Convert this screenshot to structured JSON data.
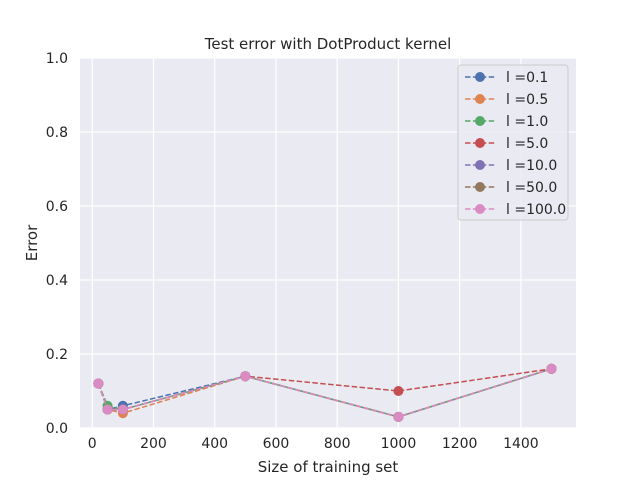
{
  "chart_data": {
    "type": "line",
    "title": "Test error with DotProduct kernel",
    "xlabel": "Size of training set",
    "ylabel": "Error",
    "xlim": [
      -40,
      1580
    ],
    "ylim": [
      0.0,
      1.0
    ],
    "xticks": [
      0,
      200,
      400,
      600,
      800,
      1000,
      1200,
      1400
    ],
    "yticks": [
      0.0,
      0.2,
      0.4,
      0.6,
      0.8,
      1.0
    ],
    "xtick_labels": [
      "0",
      "200",
      "400",
      "600",
      "800",
      "1000",
      "1200",
      "1400"
    ],
    "ytick_labels": [
      "0.0",
      "0.2",
      "0.4",
      "0.6",
      "0.8",
      "1.0"
    ],
    "grid": true,
    "legend_position": "top-right",
    "line_style": "dashed",
    "marker": "circle",
    "series": [
      {
        "name": "l =0.1",
        "color": "#4c72b0",
        "x": [
          20,
          50,
          100,
          500,
          1000,
          1500
        ],
        "y": [
          0.12,
          0.05,
          0.06,
          0.14,
          0.03,
          0.16
        ]
      },
      {
        "name": "l =0.5",
        "color": "#dd8452",
        "x": [
          20,
          50,
          100,
          500,
          1000,
          1500
        ],
        "y": [
          0.12,
          0.05,
          0.04,
          0.14,
          0.03,
          0.16
        ]
      },
      {
        "name": "l =1.0",
        "color": "#55a868",
        "x": [
          20,
          50,
          100,
          500,
          1000,
          1500
        ],
        "y": [
          0.12,
          0.06,
          0.05,
          0.14,
          0.03,
          0.16
        ]
      },
      {
        "name": "l =5.0",
        "color": "#c44e52",
        "x": [
          20,
          50,
          100,
          500,
          1000,
          1500
        ],
        "y": [
          0.12,
          0.05,
          0.05,
          0.14,
          0.1,
          0.16
        ]
      },
      {
        "name": "l =10.0",
        "color": "#8172b3",
        "x": [
          20,
          50,
          100,
          500,
          1000,
          1500
        ],
        "y": [
          0.12,
          0.05,
          0.05,
          0.14,
          0.03,
          0.16
        ]
      },
      {
        "name": "l =50.0",
        "color": "#937860",
        "x": [
          20,
          50,
          100,
          500,
          1000,
          1500
        ],
        "y": [
          0.12,
          0.05,
          0.05,
          0.14,
          0.03,
          0.16
        ]
      },
      {
        "name": "l =100.0",
        "color": "#da8bc3",
        "x": [
          20,
          50,
          100,
          500,
          1000,
          1500
        ],
        "y": [
          0.12,
          0.05,
          0.05,
          0.14,
          0.03,
          0.16
        ]
      }
    ]
  }
}
